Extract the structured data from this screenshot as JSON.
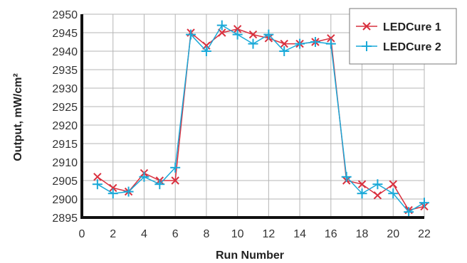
{
  "chart_data": {
    "type": "line",
    "title": "",
    "xlabel": "Run Number",
    "ylabel": "Output, mW/cm²",
    "xlim": [
      0,
      22
    ],
    "ylim": [
      2895,
      2950
    ],
    "xticks": [
      0,
      2,
      4,
      6,
      8,
      10,
      12,
      14,
      16,
      18,
      20,
      22
    ],
    "yticks": [
      2895,
      2900,
      2905,
      2910,
      2915,
      2920,
      2925,
      2930,
      2935,
      2940,
      2945,
      2950
    ],
    "grid": true,
    "legend_position": "top-right",
    "x": [
      1,
      2,
      3,
      4,
      5,
      6,
      7,
      8,
      9,
      10,
      11,
      12,
      13,
      14,
      15,
      16,
      17,
      18,
      19,
      20,
      21,
      22
    ],
    "series": [
      {
        "name": "LEDCure 1",
        "color": "#d9303e",
        "marker": "x",
        "values": [
          2906,
          2903,
          2902,
          2907,
          2905,
          2905,
          2945,
          2941.5,
          2945,
          2946,
          2944.5,
          2943.5,
          2942,
          2942,
          2942.5,
          2943.5,
          2905,
          2904,
          2901,
          2904,
          2897,
          2898
        ]
      },
      {
        "name": "LEDCure 2",
        "color": "#1aa9d8",
        "marker": "+",
        "values": [
          2904,
          2901.5,
          2902,
          2906,
          2904,
          2908.5,
          2944.5,
          2940,
          2947,
          2944.5,
          2942,
          2944.5,
          2940,
          2942,
          2942.5,
          2942,
          2906,
          2901.5,
          2904,
          2901.5,
          2896.5,
          2899
        ]
      }
    ]
  }
}
